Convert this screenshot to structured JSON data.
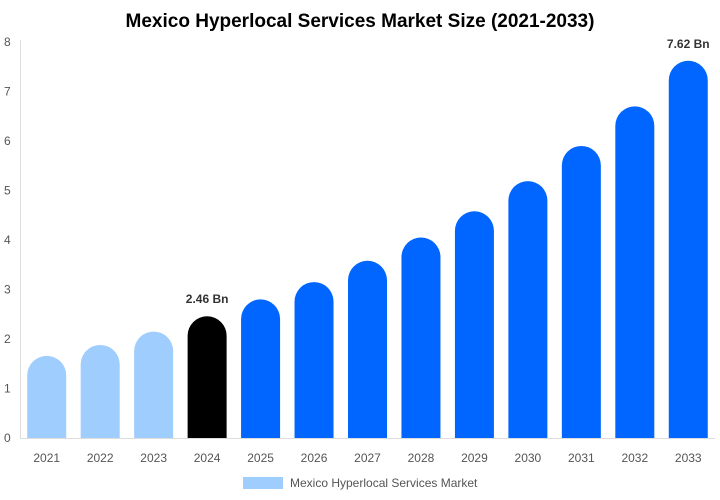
{
  "chart_data": {
    "type": "bar",
    "title": "Mexico Hyperlocal Services Market Size (2021-2033)",
    "xlabel": "",
    "ylabel": "",
    "ylim": [
      0,
      8
    ],
    "yticks": [
      "0",
      "1",
      "2",
      "3",
      "4",
      "5",
      "6",
      "7",
      "8"
    ],
    "grid": false,
    "legend_position": "bottom",
    "categories": [
      "2021",
      "2022",
      "2023",
      "2024",
      "2025",
      "2026",
      "2027",
      "2028",
      "2029",
      "2030",
      "2031",
      "2032",
      "2033"
    ],
    "series": [
      {
        "name": "Mexico Hyperlocal Services Market",
        "values": [
          1.66,
          1.88,
          2.15,
          2.46,
          2.8,
          3.15,
          3.58,
          4.05,
          4.58,
          5.19,
          5.9,
          6.7,
          7.62
        ]
      }
    ],
    "data_labels": [
      {
        "category": "2024",
        "text": "2.46 Bn"
      },
      {
        "category": "2033",
        "text": "7.62 Bn"
      }
    ],
    "colors": {
      "historical": "#9fcdfd",
      "base_year": "#000000",
      "forecast": "#0066ff",
      "legend_swatch": "#9fcdfd"
    }
  }
}
